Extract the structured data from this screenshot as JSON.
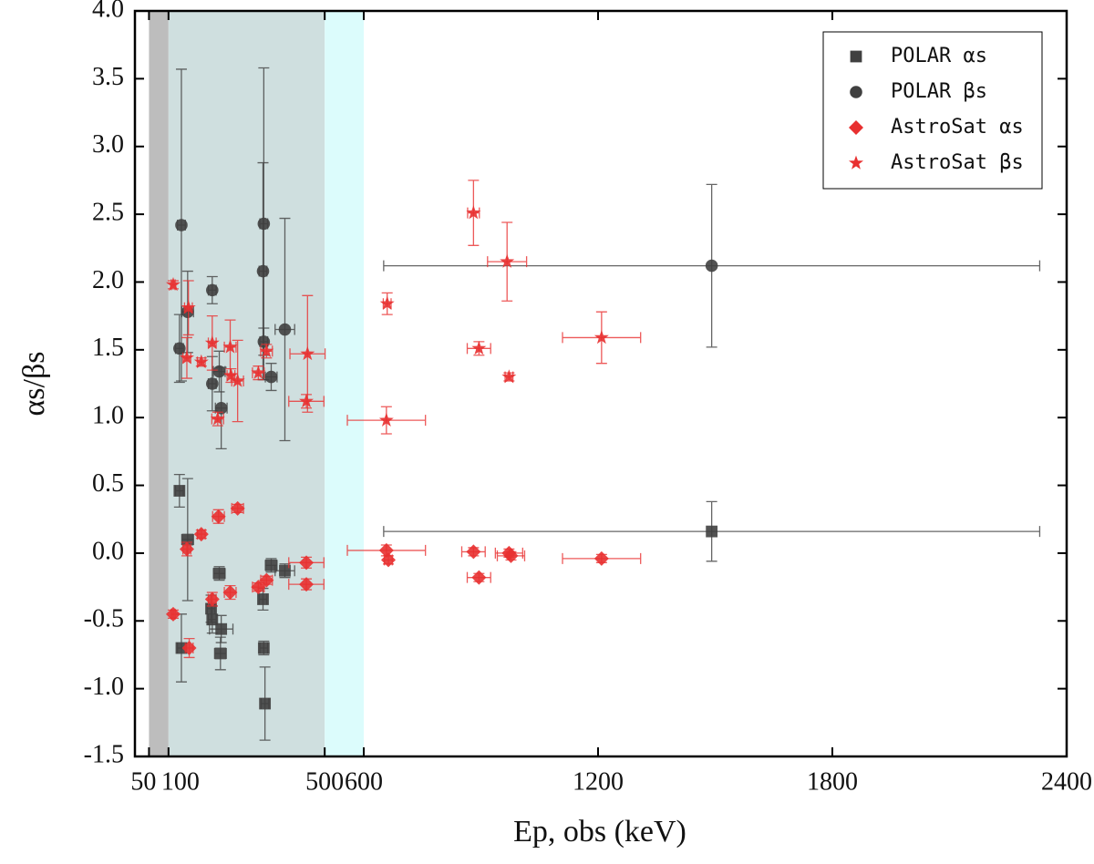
{
  "chart_data": {
    "type": "scatter",
    "x_label": "Ep, obs (keV)",
    "y_label": "αs/βs",
    "xlim": [
      14,
      2400
    ],
    "ylim": [
      -1.5,
      4.0
    ],
    "xticks": [
      50,
      100,
      500,
      600,
      1200,
      1800,
      2400
    ],
    "yticks": [
      -1.5,
      {
        "value": -1.0,
        "label": "-1.0"
      },
      -0.5,
      {
        "value": 0.0,
        "label": "0.0"
      },
      0.5,
      {
        "value": 1.0,
        "label": "1.0"
      },
      1.5,
      {
        "value": 2.0,
        "label": "2.0"
      },
      2.5,
      {
        "value": 3.0,
        "label": "3.0"
      },
      3.5,
      {
        "value": 4.0,
        "label": "4.0"
      }
    ],
    "shaded_regions": [
      {
        "x": [
          50,
          100
        ],
        "color": "#bdbdbd"
      },
      {
        "x": [
          100,
          500
        ],
        "color": "#cfdfdf"
      },
      {
        "x": [
          500,
          600
        ],
        "color": "#dcfcfc"
      }
    ],
    "legend": "upper right",
    "series": [
      {
        "name": "POLAR αs",
        "marker": "square",
        "color": "#404040",
        "x": [
          128,
          133,
          149,
          209,
          212,
          230,
          235,
          233,
          342,
          344,
          347,
          363,
          398,
          1491
        ],
        "values": [
          0.46,
          -0.7,
          0.1,
          -0.41,
          -0.49,
          -0.15,
          -0.56,
          -0.74,
          -0.34,
          -0.7,
          -1.11,
          -0.09,
          -0.13,
          0.16
        ],
        "yerr": [
          0.12,
          0.25,
          0.45,
          0.1,
          0.1,
          0.05,
          0.1,
          0.12,
          0.08,
          0.05,
          0.27,
          0.05,
          0.05,
          0.22
        ],
        "xerr": [
          10,
          10,
          15,
          10,
          10,
          15,
          30,
          15,
          10,
          10,
          10,
          15,
          25,
          840
        ]
      },
      {
        "name": "POLAR βs",
        "marker": "circle",
        "color": "#404040",
        "x": [
          133,
          128,
          149,
          212,
          212,
          230,
          235,
          344,
          342,
          344,
          363,
          398,
          1491
        ],
        "values": [
          2.42,
          1.51,
          1.78,
          1.94,
          1.25,
          1.34,
          1.07,
          2.43,
          2.08,
          1.56,
          1.3,
          1.65,
          2.12
        ],
        "yerr": [
          1.15,
          0.25,
          0.3,
          0.1,
          0.2,
          0.15,
          0.3,
          1.15,
          0.8,
          0.1,
          0.1,
          0.82,
          0.6
        ],
        "xerr": [
          10,
          10,
          15,
          10,
          10,
          15,
          15,
          10,
          10,
          10,
          15,
          25,
          840
        ]
      },
      {
        "name": "AstroSat αs",
        "marker": "diamond",
        "color": "#e83030",
        "x": [
          112,
          147,
          153,
          184,
          212,
          228,
          258,
          277,
          330,
          351,
          453,
          453,
          658,
          663,
          881,
          895,
          972,
          977,
          1209
        ],
        "values": [
          -0.45,
          0.03,
          -0.7,
          0.14,
          -0.34,
          0.27,
          -0.29,
          0.33,
          -0.25,
          -0.2,
          -0.07,
          -0.23,
          0.02,
          -0.05,
          0.01,
          -0.18,
          0.0,
          -0.02,
          -0.04
        ],
        "yerr": [
          0.03,
          0.05,
          0.07,
          0.03,
          0.05,
          0.05,
          0.05,
          0.03,
          0.03,
          0.03,
          0.04,
          0.04,
          0.04,
          0.03,
          0.03,
          0.03,
          0.03,
          0.03,
          0.03
        ],
        "xerr": [
          5,
          10,
          10,
          10,
          10,
          15,
          15,
          15,
          15,
          15,
          45,
          45,
          100,
          10,
          30,
          30,
          35,
          35,
          100
        ]
      },
      {
        "name": "AstroSat βs",
        "marker": "star",
        "color": "#e83030",
        "x": [
          112,
          147,
          151,
          184,
          212,
          226,
          258,
          260,
          277,
          330,
          351,
          456,
          453,
          660,
          658,
          881,
          895,
          967,
          972,
          1209
        ],
        "values": [
          1.98,
          1.44,
          1.81,
          1.41,
          1.55,
          0.99,
          1.52,
          1.31,
          1.27,
          1.33,
          1.49,
          1.47,
          1.12,
          1.84,
          0.98,
          2.51,
          1.51,
          2.15,
          1.3,
          1.59
        ],
        "yerr": [
          0.03,
          0.15,
          0.2,
          0.03,
          0.2,
          0.05,
          0.2,
          0.05,
          0.3,
          0.05,
          0.05,
          0.43,
          0.05,
          0.08,
          0.1,
          0.24,
          0.05,
          0.29,
          0.03,
          0.19
        ],
        "xerr": [
          5,
          10,
          10,
          10,
          10,
          15,
          15,
          10,
          15,
          15,
          15,
          45,
          45,
          10,
          100,
          15,
          30,
          50,
          10,
          100
        ]
      }
    ]
  }
}
